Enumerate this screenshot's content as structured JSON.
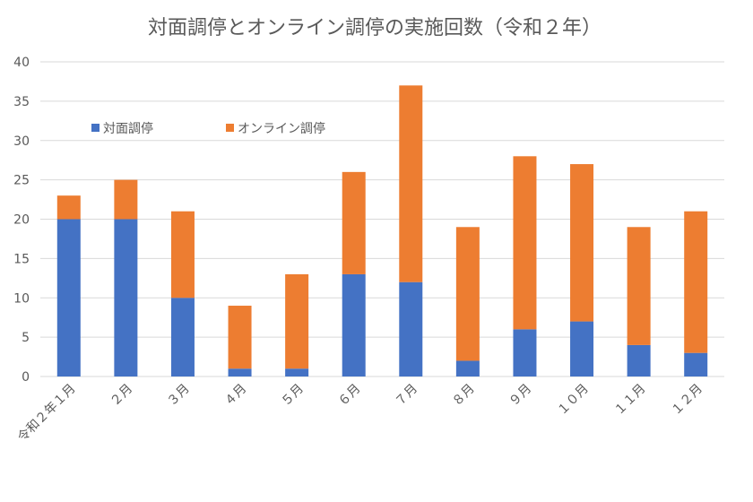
{
  "chart_data": {
    "type": "bar",
    "stacked": true,
    "title": "対面調停とオンライン調停の実施回数（令和２年）",
    "xlabel": "",
    "ylabel": "",
    "ylim": [
      0,
      40
    ],
    "yticks": [
      "0",
      "5",
      "10",
      "15",
      "20",
      "25",
      "30",
      "35",
      "40"
    ],
    "ytick_values": [
      0,
      5,
      10,
      15,
      20,
      25,
      30,
      35,
      40
    ],
    "grid": true,
    "legend_position": "top-left",
    "categories": [
      "令和２年１月",
      "２月",
      "３月",
      "４月",
      "５月",
      "６月",
      "７月",
      "８月",
      "９月",
      "１０月",
      "１１月",
      "１２月"
    ],
    "series": [
      {
        "name": "対面調停",
        "color": "#4472C4",
        "values": [
          20,
          20,
          10,
          1,
          1,
          13,
          12,
          2,
          6,
          7,
          4,
          3
        ]
      },
      {
        "name": "オンライン調停",
        "color": "#ED7D31",
        "values": [
          3,
          5,
          11,
          8,
          12,
          13,
          25,
          17,
          22,
          20,
          15,
          18
        ]
      }
    ],
    "gridline_color": "#D9D9D9",
    "text_color": "#595959"
  }
}
